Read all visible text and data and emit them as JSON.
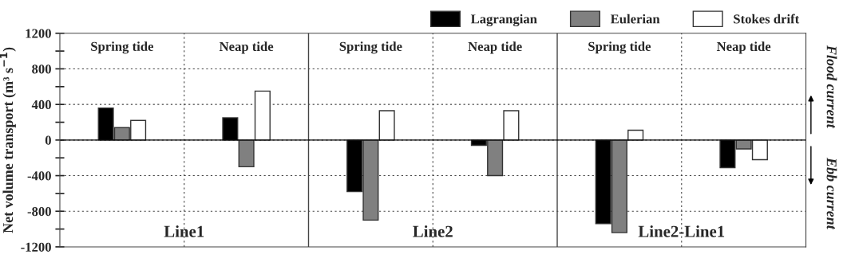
{
  "chart_data": {
    "type": "bar",
    "ylabel": "Net volume transport (m³ s$^{−1}$)",
    "categories": [
      "Spring tide",
      "Neap tide",
      "Spring tide",
      "Neap tide",
      "Spring tide",
      "Neap tide"
    ],
    "series": [
      {
        "name": "Lagrangian",
        "color": "#000000",
        "values": [
          360,
          250,
          -580,
          -60,
          -940,
          -310
        ]
      },
      {
        "name": "Eulerian",
        "color": "#808080",
        "values": [
          140,
          -300,
          -900,
          -400,
          -1040,
          -100
        ]
      },
      {
        "name": "Stokes drift",
        "color": "#ffffff",
        "values": [
          220,
          550,
          330,
          330,
          110,
          -220
        ]
      }
    ],
    "ylim": [
      -1200,
      1200
    ],
    "yticks": [
      -1200,
      {
        "value": -1000,
        "label": null
      },
      -800,
      {
        "value": -600,
        "label": null
      },
      -400,
      {
        "value": -200,
        "label": null
      },
      0,
      {
        "value": 200,
        "label": null
      },
      400,
      {
        "value": 600,
        "label": null
      },
      800,
      {
        "value": 1000,
        "label": null
      },
      1200
    ],
    "grid": "y",
    "legend": "top right",
    "ref_lines": [
      {
        "axis": "y",
        "value": 0,
        "color": "#000000",
        "line_style": "solid"
      }
    ],
    "annotations": [
      "Line1",
      "Line2",
      "Line2-Line1",
      "Flood current",
      "Ebb current"
    ]
  }
}
